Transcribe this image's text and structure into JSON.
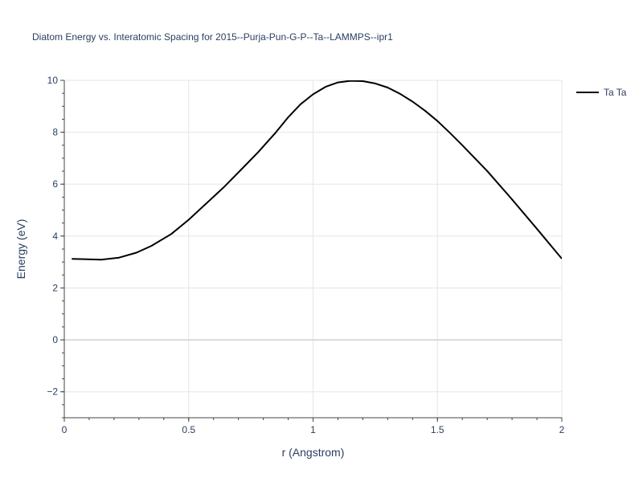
{
  "chart_data": {
    "type": "line",
    "title": "Diatom Energy vs. Interatomic Spacing for 2015--Purja-Pun-G-P--Ta--LAMMPS--ipr1",
    "xlabel": "r (Angstrom)",
    "ylabel": "Energy (eV)",
    "xlim": [
      0,
      2
    ],
    "ylim": [
      -3,
      10
    ],
    "xticks": [
      0,
      0.5,
      1,
      1.5,
      2
    ],
    "xtick_labels": [
      "0",
      "0.5",
      "1",
      "1.5",
      "2"
    ],
    "yticks": [
      -2,
      0,
      2,
      4,
      6,
      8,
      10
    ],
    "ytick_labels": [
      "−2",
      "0",
      "2",
      "4",
      "6",
      "8",
      "10"
    ],
    "grid": true,
    "legend_position": "top-right",
    "series": [
      {
        "name": "Ta Ta",
        "color": "#000000",
        "x": [
          0.03,
          0.08,
          0.15,
          0.22,
          0.29,
          0.35,
          0.43,
          0.5,
          0.57,
          0.64,
          0.71,
          0.78,
          0.85,
          0.9,
          0.95,
          1.0,
          1.05,
          1.1,
          1.15,
          1.2,
          1.25,
          1.3,
          1.35,
          1.4,
          1.45,
          1.5,
          1.55,
          1.6,
          1.7,
          1.8,
          1.9,
          2.0
        ],
        "y": [
          3.12,
          3.11,
          3.09,
          3.17,
          3.36,
          3.62,
          4.08,
          4.63,
          5.25,
          5.87,
          6.55,
          7.24,
          7.99,
          8.58,
          9.08,
          9.46,
          9.75,
          9.92,
          9.98,
          9.97,
          9.88,
          9.72,
          9.48,
          9.18,
          8.83,
          8.43,
          7.98,
          7.5,
          6.51,
          5.41,
          4.28,
          3.13
        ]
      }
    ]
  }
}
